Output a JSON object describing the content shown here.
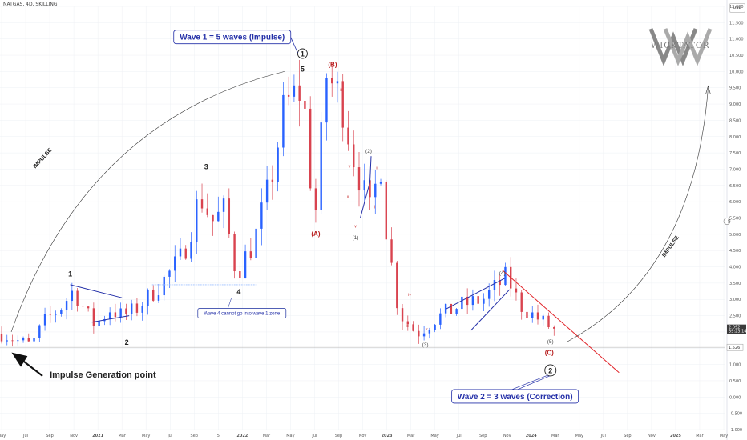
{
  "header": {
    "symbol": "NATGAS, 4D, SKILLING",
    "currency": "USD"
  },
  "logo": {
    "text": "WICKTATOR"
  },
  "colors": {
    "up": "#2962ff",
    "down": "#d9434f",
    "grid": "#eef0f4",
    "text": "#222",
    "red_line": "#e1262b",
    "navy": "#1a237e"
  },
  "chart_data": {
    "type": "candlestick",
    "ylim": [
      -1.0,
      12.0
    ],
    "y_ticks": [
      -1.0,
      -0.5,
      0.0,
      0.5,
      1.0,
      1.5,
      2.0,
      2.5,
      3.0,
      3.5,
      4.0,
      4.5,
      5.0,
      5.5,
      6.0,
      6.5,
      7.0,
      7.5,
      8.0,
      8.5,
      9.0,
      9.5,
      10.0,
      10.5,
      11.0,
      11.5,
      12.0
    ],
    "y_tick_labels": [
      "-1.000",
      "-0.500",
      "0.000",
      "0.500",
      "1.000",
      "1.500",
      "2.000",
      "2.500",
      "3.000",
      "3.500",
      "4.000",
      "4.500",
      "5.000",
      "5.500",
      "6.000",
      "6.500",
      "7.000",
      "7.500",
      "8.000",
      "8.500",
      "9.000",
      "9.500",
      "10.000",
      "10.500",
      "11.000",
      "11.500",
      "12.000"
    ],
    "x_ticks": [
      "May",
      "Jul",
      "Sep",
      "Nov",
      "2021",
      "Mar",
      "May",
      "Jul",
      "Sep",
      "5",
      "2022",
      "Mar",
      "May",
      "Jul",
      "Sep",
      "Nov",
      "2023",
      "Mar",
      "May",
      "Jul",
      "Sep",
      "Nov",
      "2024",
      "Mar",
      "May",
      "Jul",
      "Sep",
      "Nov",
      "2025",
      "Mar",
      "May"
    ],
    "x_tick_months": [
      0,
      2,
      4,
      6,
      8,
      10,
      12,
      14,
      16,
      18,
      20,
      22,
      24,
      26,
      28,
      30,
      32,
      34,
      36,
      38,
      40,
      42,
      44,
      46,
      48,
      50,
      52,
      54,
      56,
      58,
      60
    ],
    "price_path": [
      [
        0,
        1.95
      ],
      [
        1.5,
        1.7
      ],
      [
        2.5,
        1.6
      ],
      [
        3.5,
        2.3
      ],
      [
        5,
        2.8
      ],
      [
        6,
        3.3
      ],
      [
        7,
        2.6
      ],
      [
        7.8,
        2.2
      ],
      [
        9,
        2.7
      ],
      [
        10,
        2.5
      ],
      [
        11,
        2.65
      ],
      [
        12,
        3.0
      ],
      [
        13.5,
        3.6
      ],
      [
        15,
        4.3
      ],
      [
        16.5,
        6.2
      ],
      [
        17.5,
        5.4
      ],
      [
        18.5,
        5.7
      ],
      [
        19.5,
        3.8
      ],
      [
        21,
        4.8
      ],
      [
        22.3,
        6.5
      ],
      [
        23.5,
        8.9
      ],
      [
        25,
        9.5
      ],
      [
        26,
        5.3
      ],
      [
        27,
        9.9
      ],
      [
        28.5,
        8.9
      ],
      [
        29,
        7.7
      ],
      [
        30,
        6.5
      ],
      [
        30.5,
        5.5
      ],
      [
        31.5,
        7.2
      ],
      [
        32,
        5.0
      ],
      [
        33,
        2.6
      ],
      [
        34.5,
        1.95
      ],
      [
        36,
        2.4
      ],
      [
        38,
        2.8
      ],
      [
        40,
        3.0
      ],
      [
        42,
        3.7
      ],
      [
        43,
        2.85
      ],
      [
        44,
        2.55
      ],
      [
        45,
        2.3
      ],
      [
        46,
        2.03
      ]
    ],
    "last_price": "2.092",
    "last_time": "39:23:14",
    "support_label": "1.526",
    "support_level": 1.526,
    "wave1_top_level": 3.45,
    "right_axis_mark": "5"
  },
  "annotations": {
    "wave1_title": "Wave 1 = 5 waves (Impulse)",
    "wave1_circle": "1",
    "wave2_title": "Wave 2 = 3 waves (Correction)",
    "wave2_circle": "2",
    "wave4_rule": "Wave 4 cannot go into wave 1 zone",
    "impulse_gen": "Impulse Generation point",
    "impulse_left": "IMPULSE",
    "impulse_right": "IMPULSE",
    "impulse_waves": [
      "1",
      "2",
      "3",
      "4",
      "5"
    ],
    "abc": [
      "(A)",
      "(B)",
      "(C)"
    ],
    "minor": [
      "(1)",
      "(2)",
      "(3)",
      "(4)",
      "(5)"
    ],
    "roman_sub": [
      "i",
      "ii",
      "iii",
      "iv",
      "v"
    ]
  }
}
